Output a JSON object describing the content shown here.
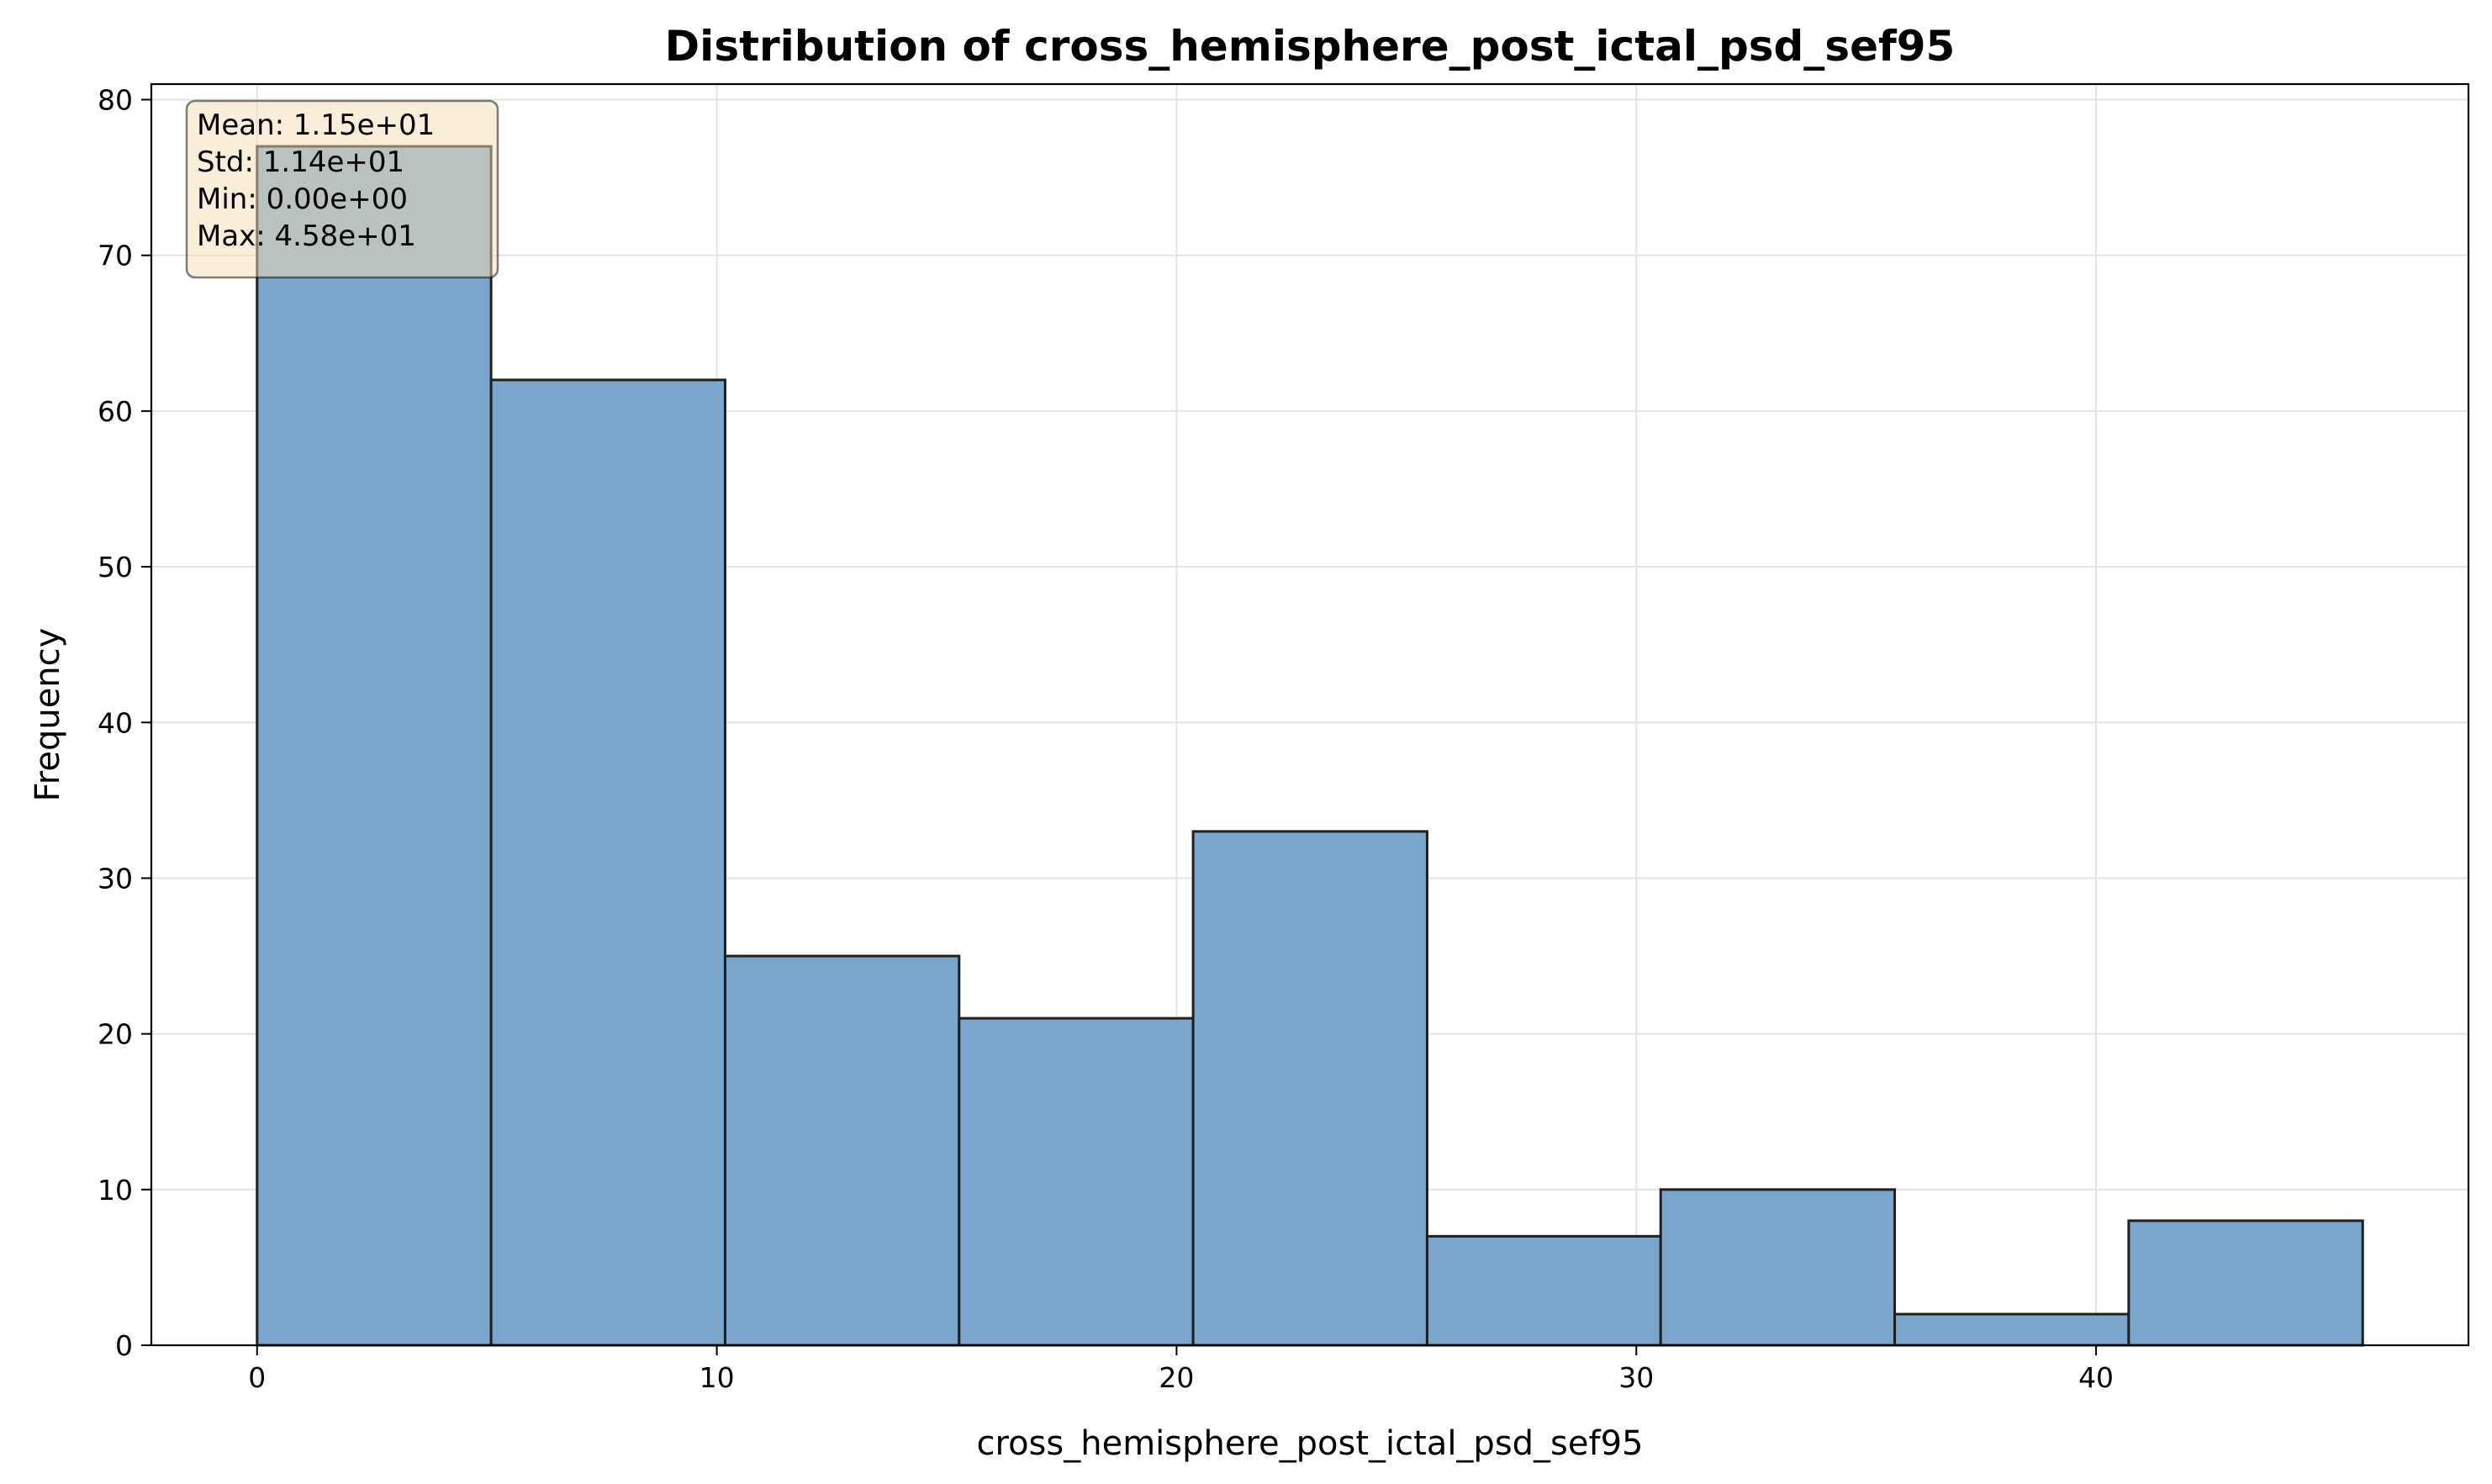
{
  "chart_data": {
    "type": "histogram",
    "title": "Distribution of cross_hemisphere_post_ictal_psd_sef95",
    "xlabel": "cross_hemisphere_post_ictal_psd_sef95",
    "ylabel": "Frequency",
    "xlim": [
      -2.3,
      48.1
    ],
    "ylim": [
      0,
      81
    ],
    "x_ticks": [
      0,
      10,
      20,
      30,
      40
    ],
    "y_ticks": [
      0,
      10,
      20,
      30,
      40,
      50,
      60,
      70,
      80
    ],
    "grid": true,
    "bin_edges": [
      0,
      5.09,
      10.18,
      15.27,
      20.36,
      25.45,
      30.53,
      35.62,
      40.71,
      45.8
    ],
    "values": [
      77,
      62,
      25,
      21,
      33,
      7,
      10,
      2,
      8
    ],
    "colors": {
      "bar_fill": "#7ba6cb",
      "bar_edge": "#1f1f1f",
      "grid": "#e3e3e3",
      "stats_box_fill": "#f5deb3"
    },
    "stats_box": {
      "lines": [
        "Mean: 1.15e+01",
        "Std: 1.14e+01",
        "Min: 0.00e+00",
        "Max: 4.58e+01"
      ],
      "placement": "top-left"
    }
  }
}
